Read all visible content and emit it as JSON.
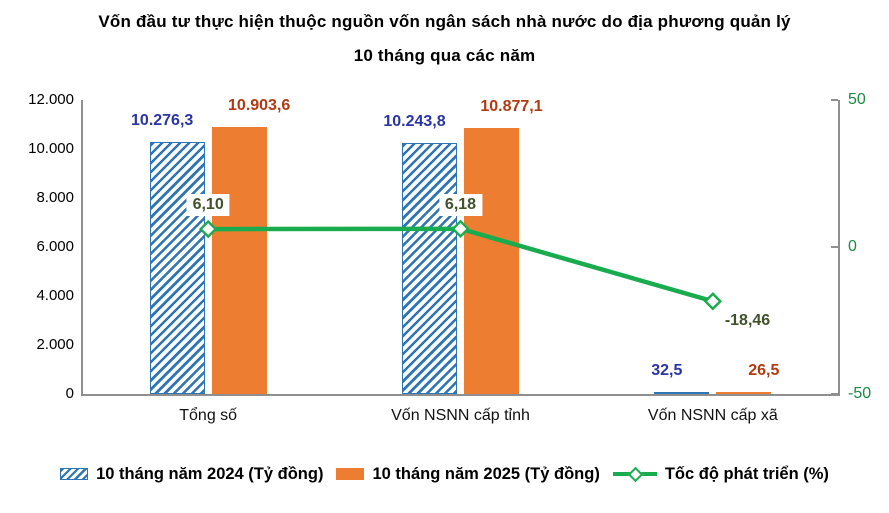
{
  "title": {
    "line1": "Vốn đầu tư thực hiện thuộc nguồn vốn ngân sách nhà nước do địa phương quản lý",
    "line2": "10 tháng qua các năm"
  },
  "chart_data": {
    "type": "combo-bar-line",
    "categories": [
      "Tổng số",
      "Vốn NSNN cấp tỉnh",
      "Vốn NSNN cấp xã"
    ],
    "series": [
      {
        "name": "10 tháng năm 2024 (Tỷ đồng)",
        "type": "bar",
        "axis": "left",
        "values": [
          10276.3,
          10243.8,
          32.5
        ],
        "labels": [
          "10.276,3",
          "10.243,8",
          "32,5"
        ]
      },
      {
        "name": "10 tháng năm 2025 (Tỷ đồng)",
        "type": "bar",
        "axis": "left",
        "values": [
          10903.6,
          10877.1,
          26.5
        ],
        "labels": [
          "10.903,6",
          "10.877,1",
          "26,5"
        ]
      },
      {
        "name": "Tốc độ phát triển (%)",
        "type": "line",
        "axis": "right",
        "values": [
          6.1,
          6.18,
          -18.46
        ],
        "labels": [
          "6,10",
          "6,18",
          "-18,46"
        ]
      }
    ],
    "left_axis": {
      "min": 0,
      "max": 12000,
      "ticks": [
        "12.000",
        "10.000",
        "8.000",
        "6.000",
        "4.000",
        "2.000",
        "0"
      ]
    },
    "right_axis": {
      "min": -50,
      "max": 50,
      "ticks": [
        "50",
        "0",
        "-50"
      ]
    },
    "grid": false,
    "legend_position": "bottom",
    "colors": {
      "bar_2024": "#2E75B6",
      "bar_2025": "#ED7D31",
      "line": "#19AC4F",
      "label_2024": "#2935A4",
      "label_2025": "#B23A10",
      "label_growth": "#41522B",
      "right_axis_labels": "#1B8A3F",
      "axis_line": "#8F8F8F"
    }
  }
}
